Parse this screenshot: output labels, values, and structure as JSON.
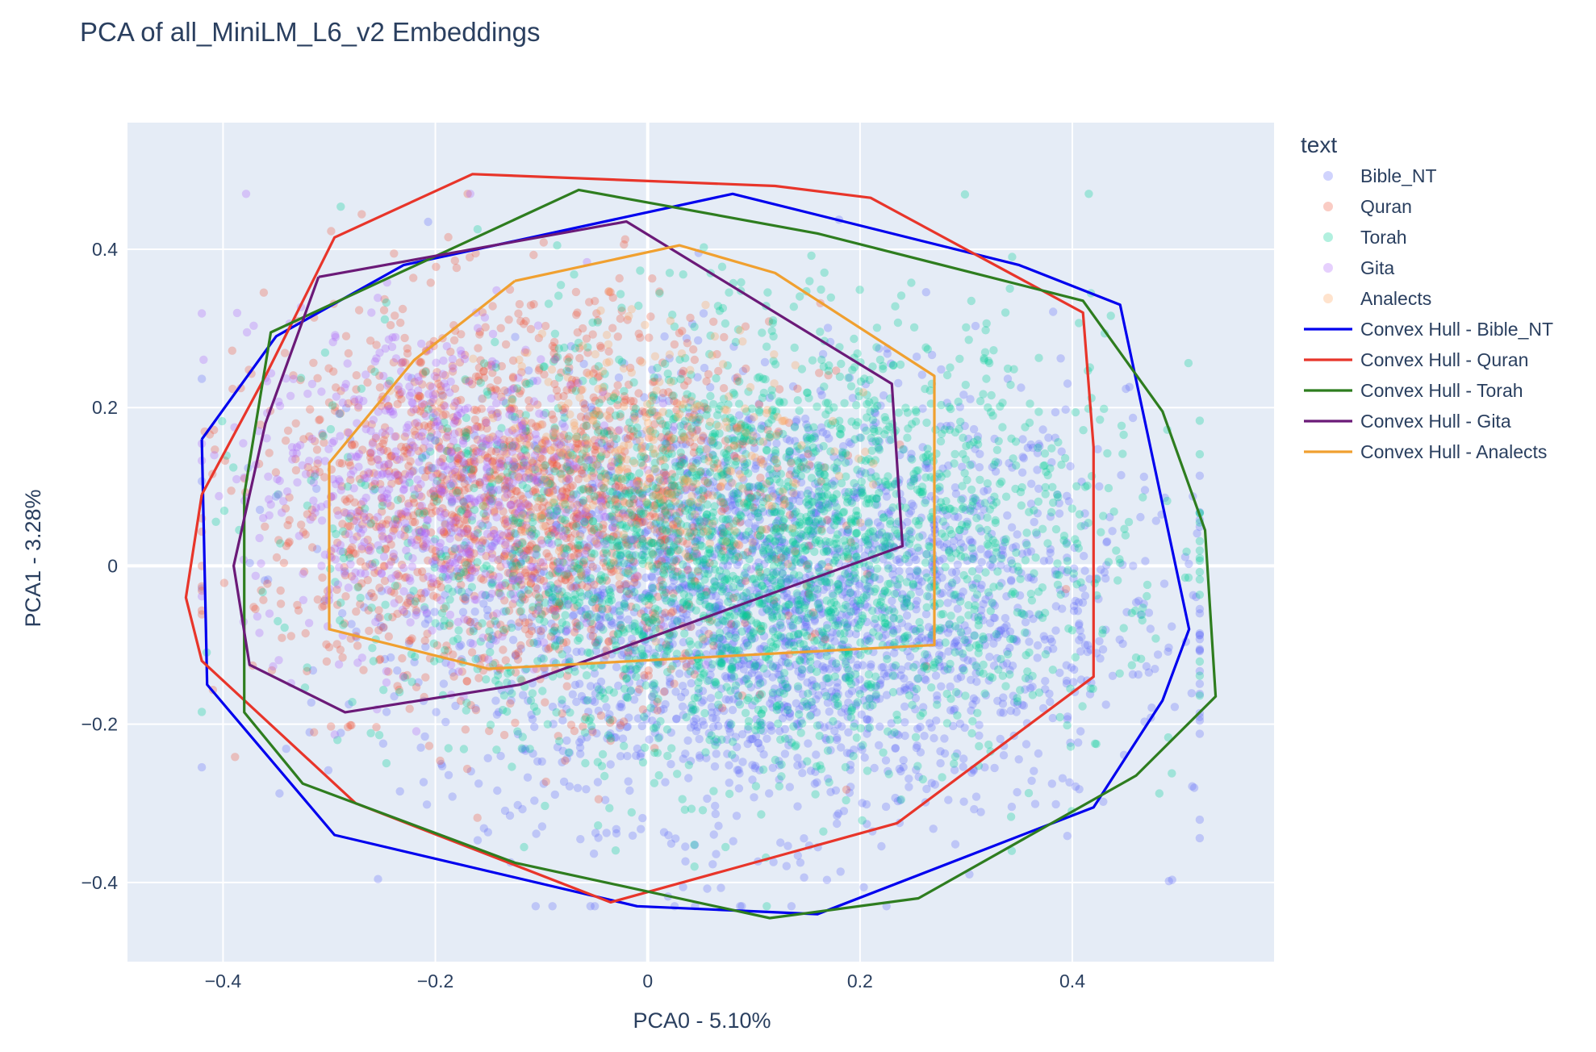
{
  "chart_data": {
    "type": "scatter",
    "title": "PCA of all_MiniLM_L6_v2 Embeddings",
    "xlabel": "PCA0 - 5.10%",
    "ylabel": "PCA1 - 3.28%",
    "xlim": [
      -0.49,
      0.59
    ],
    "ylim": [
      -0.5,
      0.56
    ],
    "x_ticks": [
      -0.4,
      -0.2,
      0,
      0.2,
      0.4
    ],
    "x_tick_labels": [
      "−0.4",
      "−0.2",
      "0",
      "0.2",
      "0.4"
    ],
    "y_ticks": [
      -0.4,
      -0.2,
      0,
      0.2,
      0.4
    ],
    "y_tick_labels": [
      "−0.4",
      "−0.2",
      "0",
      "0.2",
      "0.4"
    ],
    "grid": true,
    "legend": {
      "title": "text",
      "placement": "right",
      "entries": [
        {
          "name": "Bible_NT",
          "kind": "marker",
          "color": "#636efa"
        },
        {
          "name": "Quran",
          "kind": "marker",
          "color": "#ef553b"
        },
        {
          "name": "Torah",
          "kind": "marker",
          "color": "#00cc96"
        },
        {
          "name": "Gita",
          "kind": "marker",
          "color": "#ab63fa"
        },
        {
          "name": "Analects",
          "kind": "marker",
          "color": "#ffa15a"
        },
        {
          "name": "Convex Hull - Bible_NT",
          "kind": "line",
          "color": "#0000ee"
        },
        {
          "name": "Convex Hull - Quran",
          "kind": "line",
          "color": "#e8352a"
        },
        {
          "name": "Convex Hull - Torah",
          "kind": "line",
          "color": "#2e7d1f"
        },
        {
          "name": "Convex Hull - Gita",
          "kind": "line",
          "color": "#6b1a78"
        },
        {
          "name": "Convex Hull - Analects",
          "kind": "line",
          "color": "#f0a030"
        }
      ]
    },
    "scatter_series": [
      {
        "name": "Bible_NT",
        "color": "#636efa",
        "center": [
          0.12,
          -0.05
        ],
        "spread": [
          0.22,
          0.17
        ],
        "count": 2600
      },
      {
        "name": "Quran",
        "color": "#ef553b",
        "center": [
          -0.12,
          0.08
        ],
        "spread": [
          0.16,
          0.15
        ],
        "count": 1700
      },
      {
        "name": "Torah",
        "color": "#00cc96",
        "center": [
          0.1,
          0.02
        ],
        "spread": [
          0.22,
          0.17
        ],
        "count": 2600
      },
      {
        "name": "Gita",
        "color": "#ab63fa",
        "center": [
          -0.2,
          0.1
        ],
        "spread": [
          0.12,
          0.13
        ],
        "count": 700
      },
      {
        "name": "Analects",
        "color": "#ffa15a",
        "center": [
          0.0,
          0.15
        ],
        "spread": [
          0.11,
          0.1
        ],
        "count": 300
      }
    ],
    "hulls": [
      {
        "name": "Convex Hull - Bible_NT",
        "color": "#0000ee",
        "points": [
          [
            -0.42,
            0.16
          ],
          [
            -0.35,
            0.29
          ],
          [
            -0.23,
            0.38
          ],
          [
            0.08,
            0.47
          ],
          [
            0.35,
            0.38
          ],
          [
            0.445,
            0.33
          ],
          [
            0.51,
            -0.08
          ],
          [
            0.485,
            -0.17
          ],
          [
            0.42,
            -0.305
          ],
          [
            0.16,
            -0.44
          ],
          [
            -0.01,
            -0.43
          ],
          [
            -0.295,
            -0.34
          ],
          [
            -0.415,
            -0.15
          ],
          [
            -0.42,
            0.16
          ]
        ]
      },
      {
        "name": "Convex Hull - Quran",
        "color": "#e8352a",
        "points": [
          [
            -0.42,
            0.09
          ],
          [
            -0.36,
            0.24
          ],
          [
            -0.295,
            0.415
          ],
          [
            -0.165,
            0.495
          ],
          [
            0.12,
            0.48
          ],
          [
            0.21,
            0.465
          ],
          [
            0.41,
            0.32
          ],
          [
            0.42,
            0.15
          ],
          [
            0.42,
            -0.14
          ],
          [
            0.235,
            -0.325
          ],
          [
            -0.035,
            -0.425
          ],
          [
            -0.275,
            -0.3
          ],
          [
            -0.42,
            -0.12
          ],
          [
            -0.435,
            -0.04
          ],
          [
            -0.42,
            0.09
          ]
        ]
      },
      {
        "name": "Convex Hull - Torah",
        "color": "#2e7d1f",
        "points": [
          [
            -0.38,
            0.09
          ],
          [
            -0.355,
            0.295
          ],
          [
            -0.065,
            0.475
          ],
          [
            0.16,
            0.42
          ],
          [
            0.41,
            0.335
          ],
          [
            0.485,
            0.195
          ],
          [
            0.525,
            0.045
          ],
          [
            0.535,
            -0.165
          ],
          [
            0.46,
            -0.265
          ],
          [
            0.255,
            -0.42
          ],
          [
            0.115,
            -0.445
          ],
          [
            -0.125,
            -0.375
          ],
          [
            -0.325,
            -0.275
          ],
          [
            -0.38,
            -0.185
          ],
          [
            -0.38,
            0.09
          ]
        ]
      },
      {
        "name": "Convex Hull - Gita",
        "color": "#6b1a78",
        "points": [
          [
            -0.31,
            0.365
          ],
          [
            -0.02,
            0.435
          ],
          [
            0.23,
            0.23
          ],
          [
            0.24,
            0.025
          ],
          [
            -0.12,
            -0.15
          ],
          [
            -0.285,
            -0.185
          ],
          [
            -0.375,
            -0.125
          ],
          [
            -0.39,
            0.0
          ],
          [
            -0.36,
            0.18
          ],
          [
            -0.31,
            0.365
          ]
        ]
      },
      {
        "name": "Convex Hull - Analects",
        "color": "#f0a030",
        "points": [
          [
            -0.125,
            0.36
          ],
          [
            0.03,
            0.405
          ],
          [
            0.12,
            0.37
          ],
          [
            0.27,
            0.24
          ],
          [
            0.27,
            -0.1
          ],
          [
            -0.15,
            -0.13
          ],
          [
            -0.3,
            -0.08
          ],
          [
            -0.3,
            0.13
          ],
          [
            -0.22,
            0.26
          ],
          [
            -0.125,
            0.36
          ]
        ]
      }
    ]
  }
}
